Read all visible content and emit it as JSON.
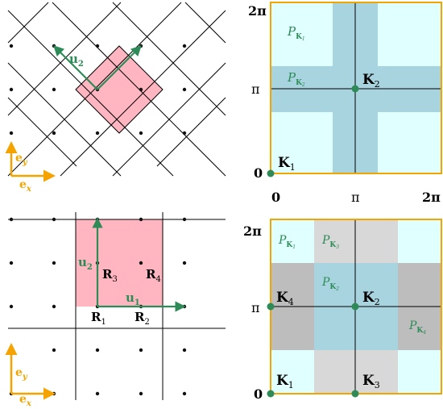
{
  "colors": {
    "lattice_point": "#111111",
    "cell_pink": "#ffb6c1",
    "vector_green": "#2e8b57",
    "vector_orange": "#f5a300",
    "region_light_cyan": "#e0ffff",
    "region_blue": "#a8d4e0",
    "region_dark_gray": "#bdbdbd",
    "region_light_gray": "#d8d8d8",
    "frame_orange": "#f0a500"
  },
  "top_left": {
    "vector_u2": "u",
    "vector_u2_sub": "2",
    "basis_ey": "e",
    "basis_ey_sub": "y",
    "basis_ex": "e",
    "basis_ex_sub": "x"
  },
  "top_right": {
    "y_tick_top": "2π",
    "y_tick_mid": "π",
    "y_tick_bottom": "0",
    "x_tick_left": "0",
    "x_tick_mid": "π",
    "x_tick_right": "2π",
    "region_P": "P",
    "region_K": "K",
    "region_1_sub": "1",
    "region_2_sub": "2",
    "point_K": "K",
    "point_1_sub": "1",
    "point_2_sub": "2"
  },
  "bottom_left": {
    "vector_u1": "u",
    "vector_u1_sub": "1",
    "vector_u2": "u",
    "vector_u2_sub": "2",
    "site_R": "R",
    "site_1_sub": "1",
    "site_2_sub": "2",
    "site_3_sub": "3",
    "site_4_sub": "4",
    "basis_ey": "e",
    "basis_ey_sub": "y",
    "basis_ex": "e",
    "basis_ex_sub": "x"
  },
  "bottom_right": {
    "y_tick_top": "2π",
    "y_tick_mid": "π",
    "y_tick_bottom": "0",
    "region_P": "P",
    "region_K": "K",
    "region_1_sub": "1",
    "region_2_sub": "2",
    "region_3_sub": "3",
    "region_4_sub": "4",
    "point_K": "K",
    "point_1_sub": "1",
    "point_2_sub": "2",
    "point_3_sub": "3",
    "point_4_sub": "4"
  }
}
